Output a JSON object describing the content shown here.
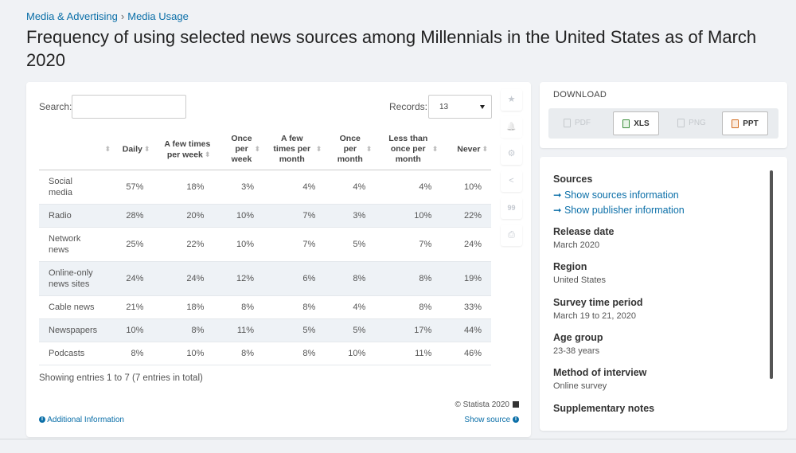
{
  "breadcrumb": {
    "parent": "Media & Advertising",
    "separator": "›",
    "current": "Media Usage"
  },
  "title": "Frequency of using selected news sources among Millennials in the United States as of March 2020",
  "controls": {
    "search_label": "Search:",
    "search_value": "",
    "records_label": "Records:",
    "records_value": "13"
  },
  "table": {
    "columns": [
      "Daily",
      "A few times per week",
      "Once per week",
      "A few times per month",
      "Once per month",
      "Less than once per month",
      "Never"
    ],
    "rows": [
      {
        "label": "Social media",
        "values": [
          "57%",
          "18%",
          "3%",
          "4%",
          "4%",
          "4%",
          "10%"
        ]
      },
      {
        "label": "Radio",
        "values": [
          "28%",
          "20%",
          "10%",
          "7%",
          "3%",
          "10%",
          "22%"
        ]
      },
      {
        "label": "Network news",
        "values": [
          "25%",
          "22%",
          "10%",
          "7%",
          "5%",
          "7%",
          "24%"
        ]
      },
      {
        "label": "Online-only news sites",
        "values": [
          "24%",
          "24%",
          "12%",
          "6%",
          "8%",
          "8%",
          "19%"
        ]
      },
      {
        "label": "Cable news",
        "values": [
          "21%",
          "18%",
          "8%",
          "8%",
          "4%",
          "8%",
          "33%"
        ]
      },
      {
        "label": "Newspapers",
        "values": [
          "10%",
          "8%",
          "11%",
          "5%",
          "5%",
          "17%",
          "44%"
        ]
      },
      {
        "label": "Podcasts",
        "values": [
          "8%",
          "10%",
          "8%",
          "8%",
          "10%",
          "11%",
          "46%"
        ]
      }
    ]
  },
  "footer": {
    "entries": "Showing entries 1 to 7 (7 entries in total)",
    "copyright": "© Statista 2020",
    "additional_info": "Additional Information",
    "show_source": "Show source"
  },
  "download": {
    "title": "DOWNLOAD",
    "pdf": "PDF",
    "xls": "XLS",
    "png": "PNG",
    "ppt": "PPT"
  },
  "info": {
    "sources_h": "Sources",
    "show_sources": "➞ Show sources information",
    "show_publisher": "➞ Show publisher information",
    "release_h": "Release date",
    "release_v": "March 2020",
    "region_h": "Region",
    "region_v": "United States",
    "survey_h": "Survey time period",
    "survey_v": "March 19 to 21, 2020",
    "age_h": "Age group",
    "age_v": "23-38 years",
    "method_h": "Method of interview",
    "method_v": "Online survey",
    "supp_h": "Supplementary notes"
  },
  "icons": {
    "star": "★",
    "bell": "🔔",
    "gear": "⚙",
    "share": "<",
    "quote": "99",
    "print": "⎙",
    "sort": "⬍",
    "info": "i"
  }
}
